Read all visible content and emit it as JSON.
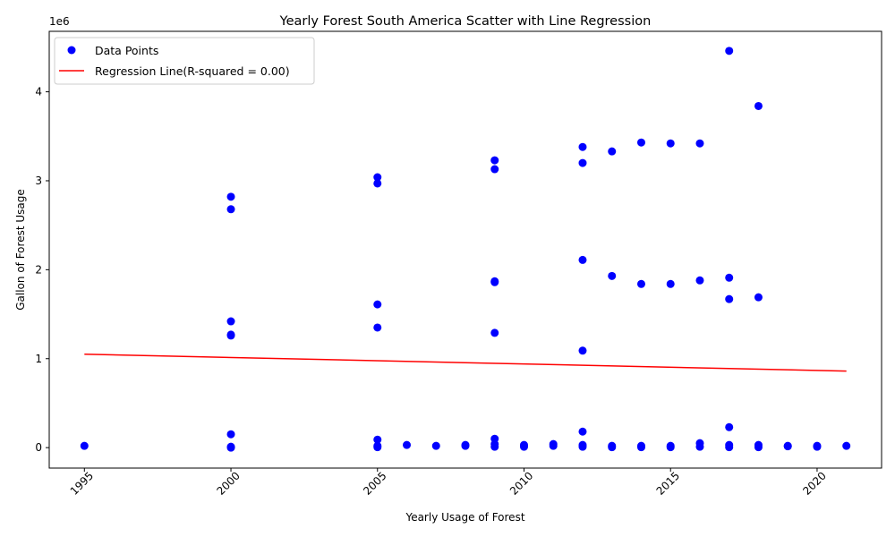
{
  "chart_data": {
    "type": "scatter",
    "title": "Yearly Forest South America Scatter with Line Regression",
    "xlabel": "Yearly Usage of Forest",
    "ylabel": "Gallon of Forest Usage",
    "offset_label": "1e6",
    "xlim": [
      1993.8,
      2022.2
    ],
    "ylim": [
      -230000,
      4680000
    ],
    "xticks": [
      1995,
      2000,
      2005,
      2010,
      2015,
      2020
    ],
    "yticks": [
      0,
      1000000,
      2000000,
      3000000,
      4000000
    ],
    "ytick_labels": [
      "0",
      "1",
      "2",
      "3",
      "4"
    ],
    "grid": false,
    "legend_position": "upper-left",
    "colors": {
      "points": "#0000ff",
      "regression": "#ff0000"
    },
    "series": [
      {
        "name": "Data Points",
        "kind": "scatter",
        "points": [
          [
            1995,
            20000
          ],
          [
            2000,
            2820000
          ],
          [
            2000,
            2680000
          ],
          [
            2000,
            1420000
          ],
          [
            2000,
            1270000
          ],
          [
            2000,
            1260000
          ],
          [
            2000,
            150000
          ],
          [
            2000,
            10000
          ],
          [
            2000,
            0
          ],
          [
            2005,
            3040000
          ],
          [
            2005,
            2970000
          ],
          [
            2005,
            1610000
          ],
          [
            2005,
            1350000
          ],
          [
            2005,
            90000
          ],
          [
            2005,
            20000
          ],
          [
            2005,
            5000
          ],
          [
            2006,
            30000
          ],
          [
            2007,
            20000
          ],
          [
            2008,
            30000
          ],
          [
            2008,
            20000
          ],
          [
            2009,
            3230000
          ],
          [
            2009,
            3130000
          ],
          [
            2009,
            1870000
          ],
          [
            2009,
            1860000
          ],
          [
            2009,
            1290000
          ],
          [
            2009,
            100000
          ],
          [
            2009,
            40000
          ],
          [
            2009,
            10000
          ],
          [
            2010,
            30000
          ],
          [
            2010,
            10000
          ],
          [
            2011,
            40000
          ],
          [
            2011,
            20000
          ],
          [
            2012,
            3380000
          ],
          [
            2012,
            3200000
          ],
          [
            2012,
            2110000
          ],
          [
            2012,
            1090000
          ],
          [
            2012,
            180000
          ],
          [
            2012,
            30000
          ],
          [
            2012,
            10000
          ],
          [
            2013,
            3330000
          ],
          [
            2013,
            1930000
          ],
          [
            2013,
            20000
          ],
          [
            2013,
            5000
          ],
          [
            2014,
            3430000
          ],
          [
            2014,
            1840000
          ],
          [
            2014,
            20000
          ],
          [
            2014,
            5000
          ],
          [
            2015,
            3420000
          ],
          [
            2015,
            1840000
          ],
          [
            2015,
            20000
          ],
          [
            2015,
            5000
          ],
          [
            2016,
            3420000
          ],
          [
            2016,
            1880000
          ],
          [
            2016,
            50000
          ],
          [
            2016,
            10000
          ],
          [
            2017,
            4460000
          ],
          [
            2017,
            1910000
          ],
          [
            2017,
            1670000
          ],
          [
            2017,
            230000
          ],
          [
            2017,
            30000
          ],
          [
            2017,
            5000
          ],
          [
            2018,
            3840000
          ],
          [
            2018,
            1690000
          ],
          [
            2018,
            30000
          ],
          [
            2018,
            5000
          ],
          [
            2019,
            20000
          ],
          [
            2019,
            15000
          ],
          [
            2020,
            20000
          ],
          [
            2020,
            10000
          ],
          [
            2021,
            20000
          ]
        ]
      },
      {
        "name": "Regression Line(R-squared = 0.00)",
        "kind": "line",
        "points": [
          [
            1995,
            1050000
          ],
          [
            2021,
            860000
          ]
        ]
      }
    ]
  }
}
